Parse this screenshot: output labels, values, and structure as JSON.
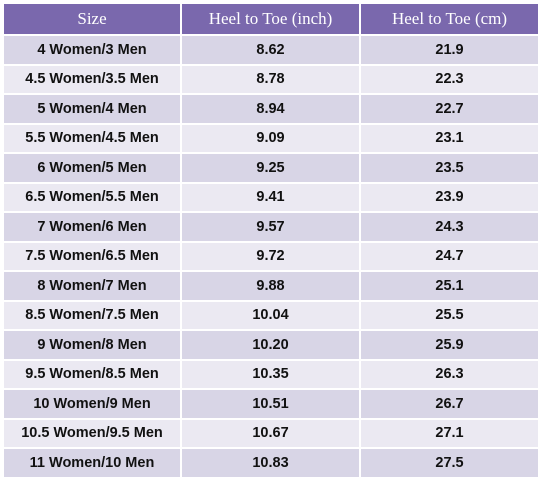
{
  "table": {
    "headers": [
      "Size",
      "Heel to Toe (inch)",
      "Heel to Toe (cm)"
    ],
    "rows": [
      [
        "4 Women/3 Men",
        "8.62",
        "21.9"
      ],
      [
        "4.5 Women/3.5 Men",
        "8.78",
        "22.3"
      ],
      [
        "5 Women/4 Men",
        "8.94",
        "22.7"
      ],
      [
        "5.5 Women/4.5 Men",
        "9.09",
        "23.1"
      ],
      [
        "6 Women/5 Men",
        "9.25",
        "23.5"
      ],
      [
        "6.5 Women/5.5 Men",
        "9.41",
        "23.9"
      ],
      [
        "7 Women/6 Men",
        "9.57",
        "24.3"
      ],
      [
        "7.5 Women/6.5 Men",
        "9.72",
        "24.7"
      ],
      [
        "8 Women/7 Men",
        "9.88",
        "25.1"
      ],
      [
        "8.5 Women/7.5 Men",
        "10.04",
        "25.5"
      ],
      [
        "9 Women/8 Men",
        "10.20",
        "25.9"
      ],
      [
        "9.5 Women/8.5 Men",
        "10.35",
        "26.3"
      ],
      [
        "10 Women/9 Men",
        "10.51",
        "26.7"
      ],
      [
        "10.5 Women/9.5 Men",
        "10.67",
        "27.1"
      ],
      [
        "11 Women/10 Men",
        "10.83",
        "27.5"
      ]
    ]
  },
  "colors": {
    "header_bg": "#7a68ad",
    "header_text": "#ffffff",
    "row_dark": "#d8d5e6",
    "row_light": "#ebe9f2",
    "cell_text": "#111111"
  }
}
